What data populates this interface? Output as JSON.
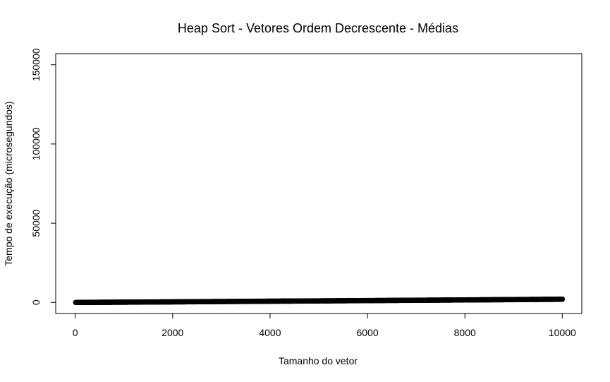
{
  "chart_data": {
    "type": "scatter",
    "title": "Heap Sort - Vetores Ordem Decrescente - Médias",
    "xlabel": "Tamanho do vetor",
    "ylabel": "Tempo de execução (microsegundos)",
    "xlim": [
      -400,
      10400
    ],
    "ylim": [
      -7000,
      157000
    ],
    "xticks": [
      0,
      2000,
      4000,
      6000,
      8000,
      10000
    ],
    "xtick_labels": [
      "0",
      "2000",
      "4000",
      "6000",
      "8000",
      "10000"
    ],
    "yticks": [
      0,
      50000,
      100000,
      150000
    ],
    "ytick_labels": [
      "0",
      "50000",
      "100000",
      "150000"
    ],
    "grid": false,
    "legend": "none",
    "marker": "open-circle",
    "marker_color": "#000000",
    "series": [
      {
        "x_range": [
          10,
          10000
        ],
        "points": [
          [
            10,
            5
          ],
          [
            500,
            80
          ],
          [
            1000,
            170
          ],
          [
            1500,
            260
          ],
          [
            2000,
            350
          ],
          [
            2500,
            460
          ],
          [
            3000,
            560
          ],
          [
            3500,
            660
          ],
          [
            4000,
            760
          ],
          [
            4500,
            860
          ],
          [
            5000,
            960
          ],
          [
            5500,
            1060
          ],
          [
            6000,
            1160
          ],
          [
            6500,
            1270
          ],
          [
            7000,
            1370
          ],
          [
            7500,
            1470
          ],
          [
            8000,
            1580
          ],
          [
            8500,
            1680
          ],
          [
            9000,
            1790
          ],
          [
            9500,
            1900
          ],
          [
            10000,
            2000
          ]
        ]
      }
    ]
  }
}
